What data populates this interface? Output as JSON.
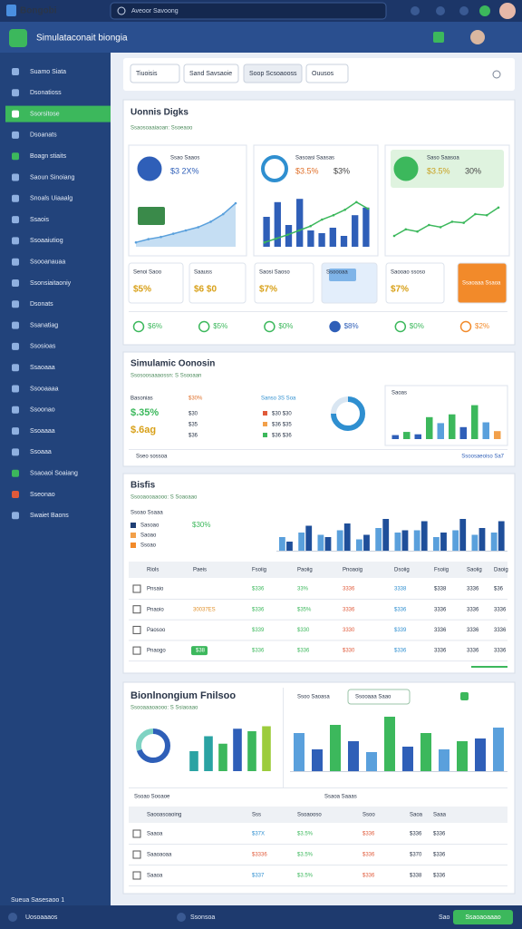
{
  "header": {
    "app_name": "Bongobi",
    "search": "Aveoor Savoong",
    "subtitle": "Simulataconait biongia"
  },
  "sidebar": {
    "items": [
      "Suamo Siata",
      "Dsonatioss",
      "Ssorsitose",
      "Dsoanats",
      "Boagn stiaits",
      "Saoun Sinoiang",
      "Snoals Uiaaalg",
      "Ssaois",
      "Ssoaaiutiog",
      "Ssooanauaa",
      "Ssonsiaitaoniy",
      "Dsonats",
      "Ssanatiag",
      "Ssosioas",
      "Ssaoaaa",
      "Ssooaaaa",
      "Ssoonao",
      "Ssoaaaa",
      "Ssoaaa",
      "Ssaoaoi Soaiang",
      "Sseonao",
      "Swaiet Baons"
    ],
    "footer": "Sueua Sasesaoo 1"
  },
  "filters": [
    "Tiuoisis",
    "Sand Savsaoie",
    "Soop Scsoaooss",
    "Ouusos"
  ],
  "panel_a": {
    "title": "Uonnis Digks",
    "subtitle": "Ssaosoaaiaoan: Ssoeaoo",
    "cards": [
      {
        "label": "Ssao Saaos",
        "value": "$3 2X%",
        "chart": {
          "values": [
            8,
            14,
            18,
            24,
            30,
            36,
            46,
            60,
            80
          ],
          "color": "#5aa0dc"
        }
      },
      {
        "label": "Sasoasi Saasas",
        "value": "$3.5%",
        "value2": "$3%",
        "bars": {
          "values": [
            55,
            82,
            40,
            88,
            30,
            25,
            35,
            20,
            58,
            72
          ],
          "color": "#2f5fb8"
        },
        "line": {
          "values": [
            8,
            15,
            22,
            30,
            38,
            50,
            58,
            68,
            82,
            70
          ],
          "color": "#3cb85c"
        }
      },
      {
        "label": "Saso Saasoa",
        "value": "$3.5%",
        "value2": "30%",
        "chart": {
          "values": [
            20,
            32,
            28,
            40,
            36,
            46,
            44,
            60,
            58,
            72
          ],
          "color": "#3cb85c"
        }
      }
    ],
    "kpis": [
      {
        "label": "Senoi Saoo",
        "value": "$5%"
      },
      {
        "label": "Saauss",
        "value": "$6 $0"
      },
      {
        "label": "Saosi Saoso",
        "value": "$7%"
      },
      {
        "label": "Ssoooaa"
      },
      {
        "label": "Saooao ssoso",
        "value": "$7%"
      },
      {
        "label": "Ssaoaaa Ssaoa"
      }
    ],
    "stats": [
      "$6%",
      "$5%",
      "$0%",
      "$8%",
      "$0%",
      "$2%"
    ]
  },
  "panel_b": {
    "title": "Simulamic Oonosin",
    "subtitle": "Ssosoosaaaossn: S Ssooaan",
    "metric_label": "Basonias",
    "metrics": [
      "$.35%",
      "$.6ag"
    ],
    "mid_head": "$30%",
    "mid_rows": [
      "$30",
      "$35",
      "$36"
    ],
    "legend_head": "Sanso 3S Soa",
    "legend_rows": [
      "$30 $30",
      "$36 $35",
      "$36 $36"
    ],
    "donut": {
      "values": [
        75,
        25
      ],
      "colors": [
        "#2f8fd0",
        "#d9e6f2"
      ]
    },
    "bar_title": "Saoas",
    "bars": {
      "values": [
        10,
        18,
        12,
        55,
        40,
        62,
        30,
        85,
        42,
        20
      ],
      "colors": [
        "#2f5fb8",
        "#3cb85c",
        "#2f5fb8",
        "#3cb85c",
        "#5aa0dc",
        "#3cb85c",
        "#2f5fb8",
        "#3cb85c",
        "#5aa0dc",
        "#f2a04a"
      ]
    },
    "footer_left": "Sseo sossoa",
    "footer_right": "Ssoosaeoiso Sa7"
  },
  "panel_c": {
    "title": "Bisfis",
    "subtitle": "Ssooaooaaooo: S Soaoaao",
    "legend_title": "Ssoao Ssaaa",
    "legend": [
      "Sasoao",
      "Saoao",
      "Ssoao"
    ],
    "highlight": "$30%",
    "series": [
      {
        "color": "#5aa0dc",
        "values": [
          30,
          40,
          35,
          45,
          25,
          50,
          40,
          45,
          30,
          45,
          35,
          40
        ]
      },
      {
        "color": "#1f4f9a",
        "values": [
          20,
          55,
          30,
          60,
          35,
          70,
          45,
          65,
          40,
          70,
          50,
          65
        ]
      }
    ],
    "headers": [
      "Riols",
      "Paeis",
      "Fsoiig",
      "Paoiig",
      "Pnoaoig",
      "Dsoiig",
      "Fsoiig",
      "Saoiig",
      "Daoig"
    ],
    "rows": [
      [
        "Pnsaio",
        null,
        "$336",
        "33%",
        "3336",
        "3338",
        "$338",
        "3336",
        "$36"
      ],
      [
        "Pnaoio",
        "30037ES",
        "$336",
        "$35%",
        "3336",
        "$336",
        "3336",
        "3336",
        "3336"
      ],
      [
        "Paosoo",
        null,
        "$339",
        "$330",
        "3330",
        "$339",
        "3336",
        "3336",
        "3336"
      ],
      [
        "Pnaogo",
        "$38",
        "$336",
        "$336",
        "$330",
        "$336",
        "3336",
        "3336",
        "3336"
      ]
    ]
  },
  "panel_d": {
    "title": "Bionlnongium Fnilsoo",
    "subtitle": "Ssooaaaoaooo: S Ssiaoaao",
    "tab_label": "Ssoo Saoasa",
    "tab_input": "Ssooaaa Saao",
    "donut": {
      "values": [
        70,
        30
      ],
      "colors": [
        "#2f5fb8",
        "#7fd3c3"
      ]
    },
    "bars1": {
      "values": [
        40,
        70,
        55,
        85,
        80,
        90
      ],
      "colors": [
        "#2aa3a3",
        "#2aa3a3",
        "#3cb85c",
        "#2f5fb8",
        "#3cb85c",
        "#9ccc3c"
      ]
    },
    "bars2": {
      "values": [
        70,
        40,
        85,
        55,
        35,
        100,
        45,
        70,
        40,
        55,
        60,
        80
      ],
      "colors": [
        "#5aa0dc",
        "#2f5fb8",
        "#3cb85c",
        "#2f5fb8",
        "#5aa0dc",
        "#3cb85c",
        "#2f5fb8",
        "#3cb85c",
        "#5aa0dc",
        "#3cb85c",
        "#2f5fb8",
        "#5aa0dc"
      ]
    },
    "subheads": [
      "Ssoao Sooaoe",
      "Ssaoa Saaas"
    ],
    "headers": [
      "Saooasoaoing",
      "Sss",
      "Ssoaooso",
      "Ssoo",
      "Saoa",
      "Saaa"
    ],
    "rows": [
      [
        "Saaoa",
        "$37X",
        "$3.5%",
        "$336",
        "$336",
        "$336"
      ],
      [
        "Saaoaoaa",
        "$3336",
        "$3.5%",
        "$336",
        "$370",
        "$336"
      ],
      [
        "Saaoa",
        "$337",
        "$3.5%",
        "$336",
        "$338",
        "$336"
      ]
    ]
  },
  "footer": {
    "left": "Uosoaaaos",
    "mid": "Ssonsoa",
    "right": "Sao",
    "button": "Ssaoaoaaao"
  }
}
